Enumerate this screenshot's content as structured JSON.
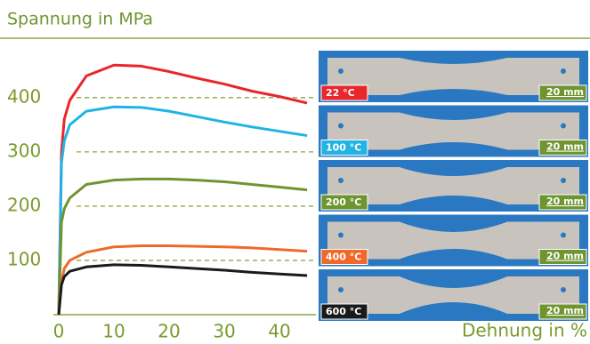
{
  "chart_data": {
    "type": "line",
    "title": "Spannung in MPa",
    "x_label": "Dehnung in %",
    "x": [
      0,
      0.5,
      1,
      2,
      5,
      10,
      15,
      20,
      25,
      30,
      35,
      40,
      45
    ],
    "series": [
      {
        "name": "22 °C",
        "color": "#e8262b",
        "values": [
          0,
          300,
          360,
          395,
          440,
          460,
          458,
          448,
          436,
          425,
          412,
          402,
          390
        ]
      },
      {
        "name": "100 °C",
        "color": "#1fb4e4",
        "values": [
          0,
          280,
          320,
          350,
          375,
          383,
          382,
          375,
          365,
          355,
          346,
          338,
          330
        ]
      },
      {
        "name": "200 °C",
        "color": "#6f9530",
        "values": [
          0,
          170,
          195,
          215,
          240,
          248,
          250,
          250,
          248,
          245,
          240,
          235,
          230
        ]
      },
      {
        "name": "400 °C",
        "color": "#ef6a2a",
        "values": [
          0,
          60,
          85,
          100,
          115,
          125,
          127,
          127,
          126,
          125,
          123,
          120,
          117
        ]
      },
      {
        "name": "600 °C",
        "color": "#1a1a1a",
        "values": [
          0,
          55,
          70,
          80,
          88,
          92,
          91,
          88,
          85,
          82,
          78,
          75,
          72
        ]
      }
    ],
    "scale_labels": [
      "20 mm",
      "20 mm",
      "20 mm",
      "20 mm",
      "20 mm"
    ],
    "xlim": [
      0,
      46.6
    ],
    "xticks": [
      0,
      10,
      20,
      30,
      40
    ],
    "ylim": [
      0,
      480
    ],
    "yticks": [
      100,
      200,
      300,
      400
    ],
    "grid": true
  }
}
